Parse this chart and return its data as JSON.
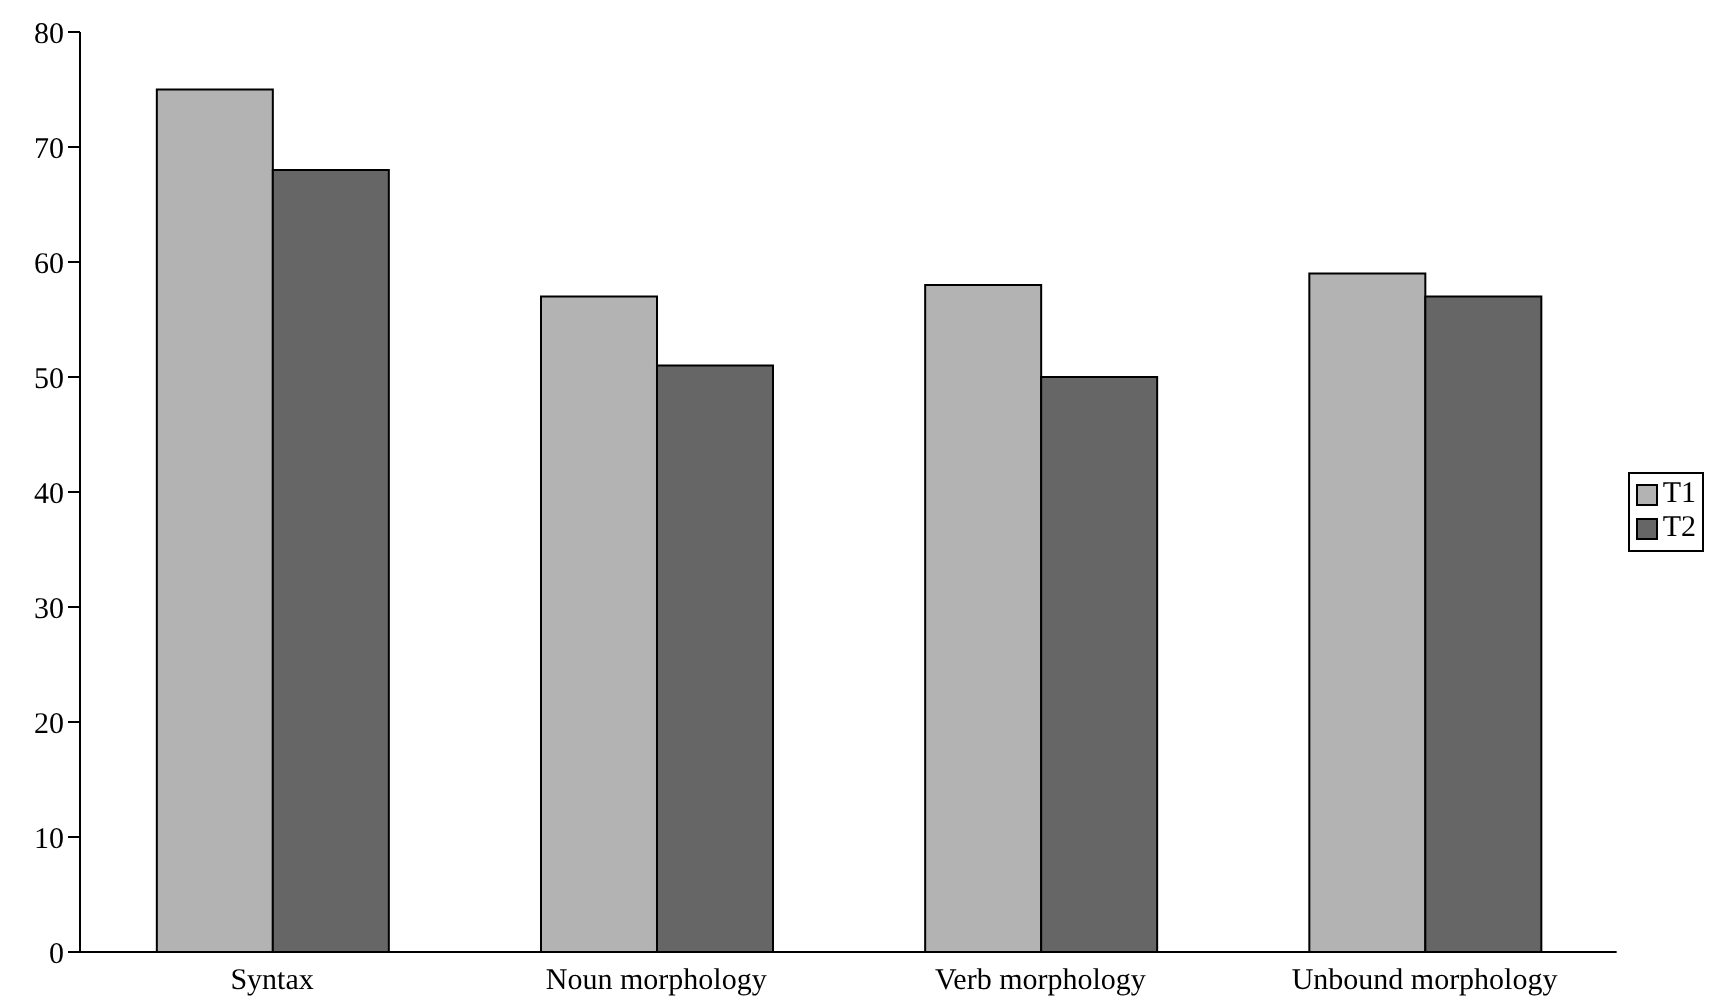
{
  "chart_data": {
    "type": "bar",
    "categories": [
      "Syntax",
      "Noun morphology",
      "Verb morphology",
      "Unbound morphology"
    ],
    "series": [
      {
        "name": "T1",
        "color": "#b3b3b3",
        "values": [
          75,
          57,
          58,
          59
        ]
      },
      {
        "name": "T2",
        "color": "#666666",
        "values": [
          68,
          51,
          50,
          57
        ]
      }
    ],
    "ylim": [
      0,
      80
    ],
    "yticks": [
      0,
      10,
      20,
      30,
      40,
      50,
      60,
      70,
      80
    ],
    "grid": false,
    "legend": "right"
  }
}
